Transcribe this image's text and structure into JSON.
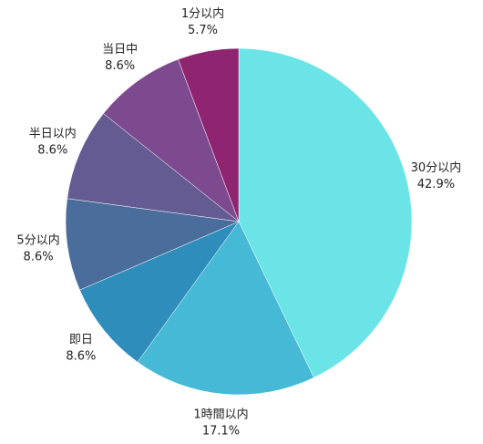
{
  "chart_data": {
    "type": "pie",
    "categories": [
      "30分以内",
      "1時間以内",
      "即日",
      "5分以内",
      "半日以内",
      "当日中",
      "1分以内"
    ],
    "values": [
      42.9,
      17.1,
      8.6,
      8.6,
      8.6,
      8.6,
      5.7
    ],
    "value_labels": [
      "42.9%",
      "17.1%",
      "8.6%",
      "8.6%",
      "8.6%",
      "8.6%",
      "5.7%"
    ],
    "colors": [
      "#6ae4e7",
      "#45b9d5",
      "#2f8dbb",
      "#4a6d9b",
      "#645b93",
      "#7e4a8f",
      "#8f2571"
    ]
  }
}
